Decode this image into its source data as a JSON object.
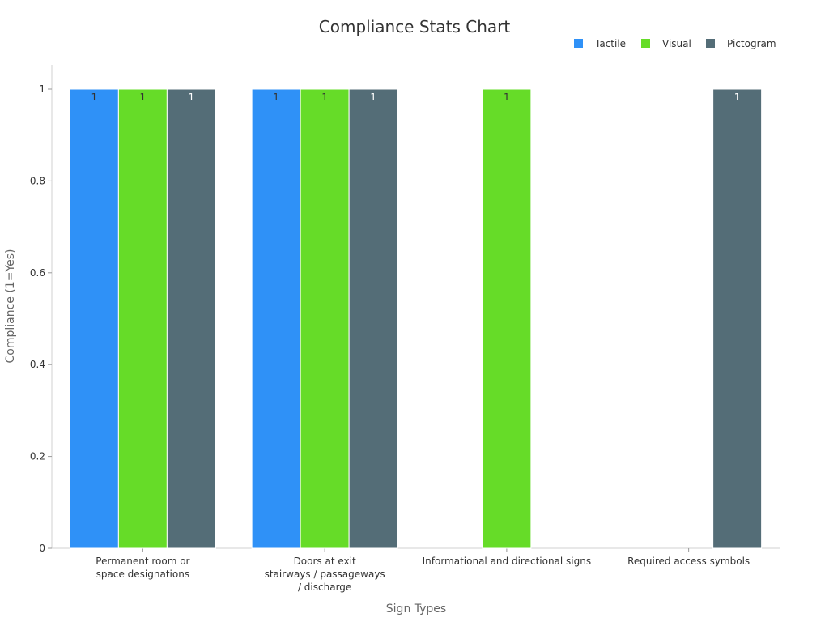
{
  "chart_data": {
    "type": "bar",
    "title": "Compliance Stats Chart",
    "xlabel": "Sign Types",
    "ylabel": "Compliance (1=Yes)",
    "categories": [
      [
        "Permanent room or",
        "space designations"
      ],
      [
        "Doors at exit",
        "stairways / passageways",
        "/ discharge"
      ],
      [
        "Informational and directional signs"
      ],
      [
        "Required access symbols"
      ]
    ],
    "series": [
      {
        "name": "Tactile",
        "color": "#2f91f7",
        "values": [
          1,
          1,
          null,
          null
        ]
      },
      {
        "name": "Visual",
        "color": "#66dc28",
        "values": [
          1,
          1,
          1,
          null
        ]
      },
      {
        "name": "Pictogram",
        "color": "#546d77",
        "values": [
          1,
          1,
          null,
          1
        ]
      }
    ],
    "ylim": [
      0,
      1.05
    ],
    "yticks": [
      "0",
      "0.2",
      "0.4",
      "0.6",
      "0.8",
      "1"
    ],
    "legend": "top-right",
    "grid": false
  }
}
